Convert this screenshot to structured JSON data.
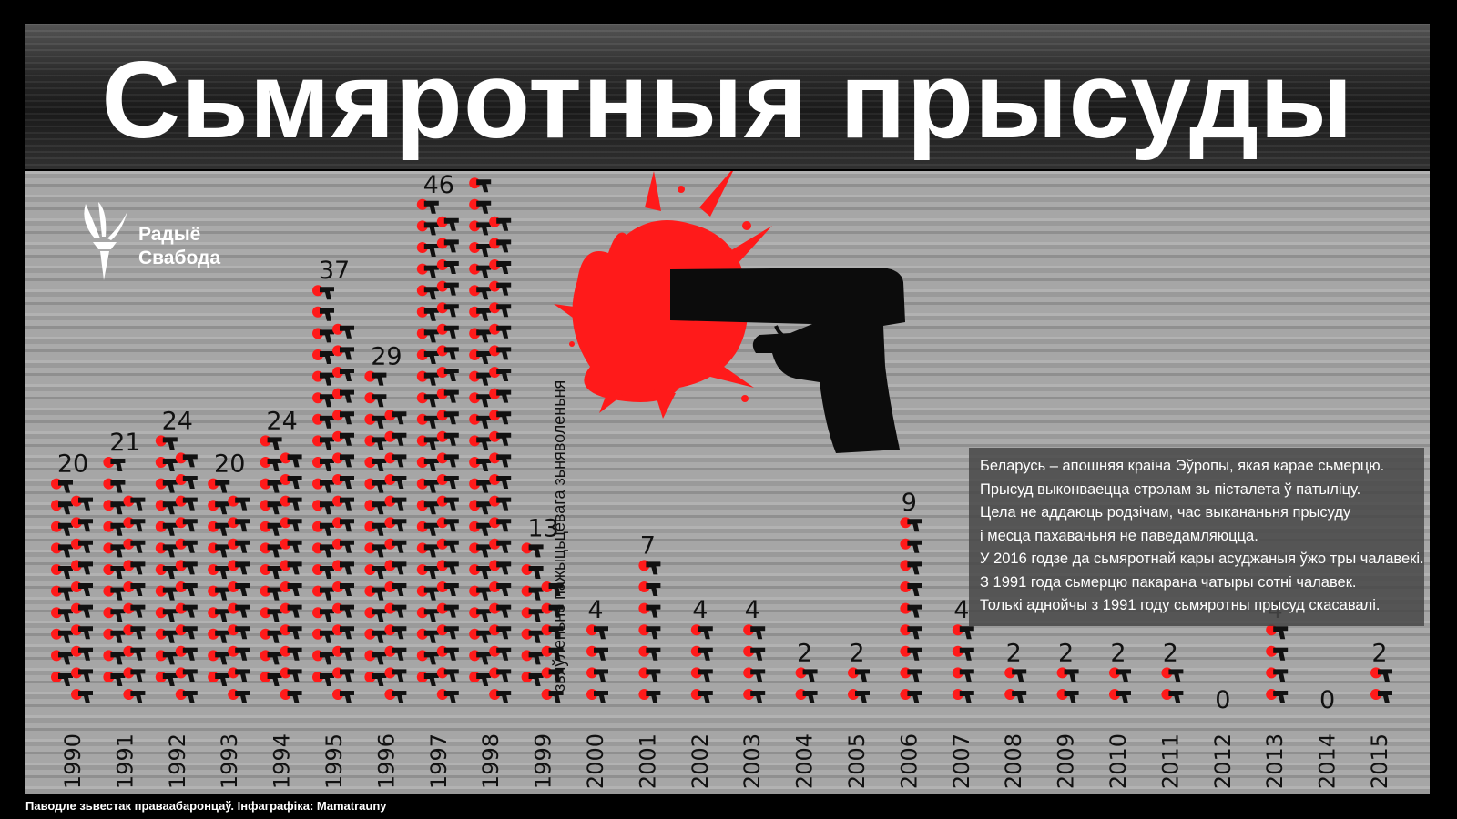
{
  "title": "Сьмяротныя прысуды",
  "logo": {
    "name_line1": "Радыё",
    "name_line2": "Свабода"
  },
  "moratorium_note": "зьяўленьне пажыцьцёвага зьняволеньня",
  "info_lines": [
    "Беларусь – апошняя краіна Эўропы, якая карае сьмерцю.",
    "Прысуд выконваецца стрэлам зь пісталета ў патыліцу.",
    "Цела не аддаюць родзічам, час выкананьня прысуду",
    "і месца пахаваньня не паведамляюцца.",
    "У 2016 годзе да сьмяротнай кары асуджаныя ўжо тры чалавекі.",
    "З 1991 года сьмерцю пакарана чатыры сотні чалавек.",
    "Толькі аднойчы з 1991 году сьмяротны прысуд скасавалі."
  ],
  "source": "Паводле зьвестак праваабаронцаў. Інфаграфіка: Mamatrauny",
  "colors": {
    "accent": "#ff1a1a",
    "panel": "#a3a3a3",
    "background": "#000000"
  },
  "icons": {
    "unit": "pistol-head-icon",
    "illustration": "pistol-blood-icon",
    "logo": "torch-icon"
  },
  "chart_data": {
    "type": "bar",
    "title": "Сьмяротныя прысуды",
    "x": [
      "1990",
      "1991",
      "1992",
      "1993",
      "1994",
      "1995",
      "1996",
      "1997",
      "1998",
      "1999",
      "2000",
      "2001",
      "2002",
      "2003",
      "2004",
      "2005",
      "2006",
      "2007",
      "2008",
      "2009",
      "2010",
      "2011",
      "2012",
      "2013",
      "2014",
      "2015"
    ],
    "values": [
      20,
      21,
      24,
      20,
      24,
      37,
      29,
      46,
      47,
      13,
      4,
      7,
      4,
      4,
      2,
      2,
      9,
      4,
      2,
      2,
      2,
      2,
      0,
      4,
      0,
      2
    ],
    "annotations": [
      {
        "x": "1999",
        "text": "зьяўленьне пажыцьцёвага зьняволеньня"
      }
    ]
  }
}
